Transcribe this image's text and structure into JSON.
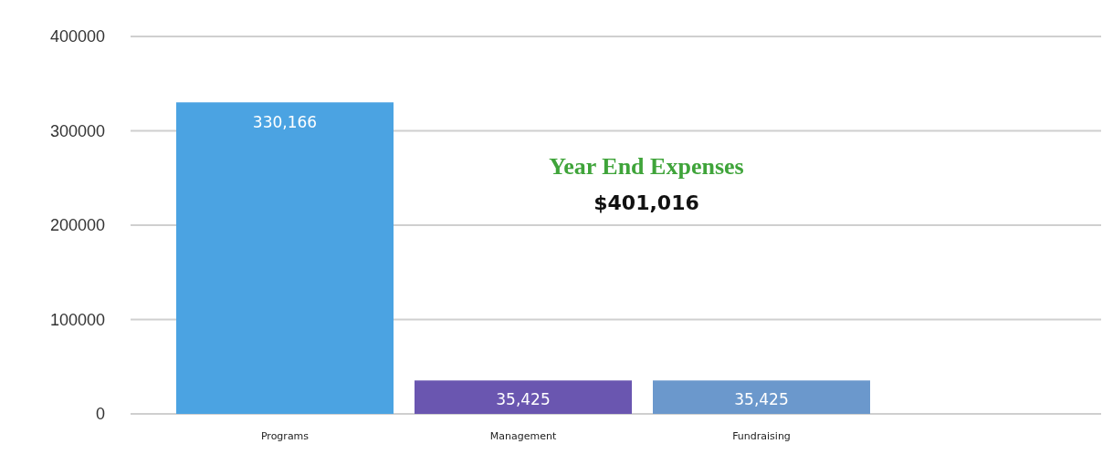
{
  "chart_data": {
    "type": "bar",
    "title": "Year End Expenses",
    "subtitle": "$401,016",
    "categories": [
      "Programs",
      "Management",
      "Fundraising"
    ],
    "values": [
      330166,
      35425,
      35425
    ],
    "colors": [
      "#4ba3e2",
      "#6a56b0",
      "#6b98cc"
    ],
    "value_labels": [
      "330,166",
      "35,425",
      "35,425"
    ],
    "ylim": [
      0,
      400000
    ],
    "yticks": [
      0,
      100000,
      200000,
      300000,
      400000
    ],
    "grid": "y"
  }
}
